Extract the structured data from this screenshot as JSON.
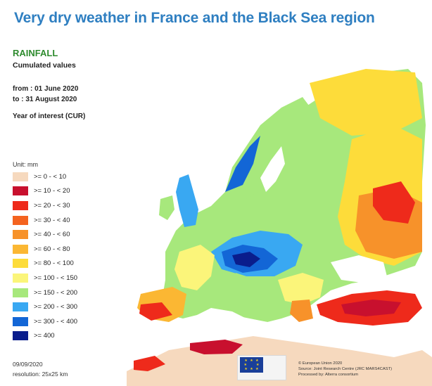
{
  "headline": "Very dry weather in France and the Black Sea region",
  "map": {
    "title": "RAINFALL",
    "subtitle": "Cumulated values",
    "from_line": "from  : 01 June 2020",
    "to_line": "to      : 31 August 2020",
    "year_label": "Year of interest (CUR)",
    "unit": "Unit: mm",
    "legend": [
      {
        "label": ">= 0 - < 10",
        "color": "#f6d9be"
      },
      {
        "label": ">= 10 - < 20",
        "color": "#c8102e"
      },
      {
        "label": ">= 20 - < 30",
        "color": "#ee2a1b"
      },
      {
        "label": ">= 30 - < 40",
        "color": "#f4631f"
      },
      {
        "label": ">= 40 - < 60",
        "color": "#f7922a"
      },
      {
        "label": ">= 60 - < 80",
        "color": "#fbb733"
      },
      {
        "label": ">= 80 - < 100",
        "color": "#fddc3a"
      },
      {
        "label": ">= 100 - < 150",
        "color": "#fbf57a"
      },
      {
        "label": ">= 150 - < 200",
        "color": "#a7e87c"
      },
      {
        "label": ">= 200 - < 300",
        "color": "#39a8f2"
      },
      {
        "label": ">= 300 - < 400",
        "color": "#1366d6"
      },
      {
        "label": ">= 400",
        "color": "#0a1d8c"
      }
    ],
    "date": "09/09/2020",
    "resolution": "resolution: 25x25 km",
    "credits": [
      "© European Union 2020",
      "Source: Joint Research Centre (JRC MARS4CAST)",
      "Processed by: Alterra consortium"
    ]
  }
}
